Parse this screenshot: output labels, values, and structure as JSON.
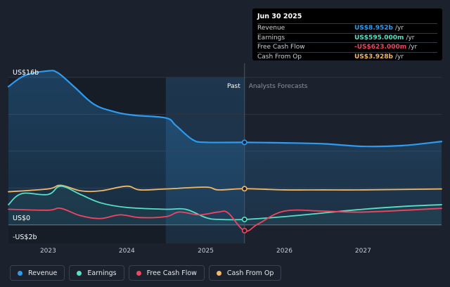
{
  "chart_data": {
    "type": "area",
    "y_axis": {
      "top_label": "US$16b",
      "zero_label": "US$0",
      "bottom_label": "-US$2b",
      "ylim": [
        -2000,
        16000
      ],
      "gridlines": [
        16000,
        12000,
        8000,
        4000,
        0
      ]
    },
    "x_axis": {
      "ticks": [
        "2023",
        "2024",
        "2025",
        "2026",
        "2027"
      ],
      "range": [
        "2022-07-01",
        "2027-12-31"
      ]
    },
    "sections": {
      "past_label": "Past",
      "forecast_label": "Analysts Forecasts",
      "divider_date": "2025-06-30",
      "highlight_start": "2024-06-30"
    },
    "tooltip": {
      "date": "Jun 30 2025",
      "rows": [
        {
          "label": "Revenue",
          "value": "US$8.952b",
          "unit": "/yr",
          "color": "#2e9bf0"
        },
        {
          "label": "Earnings",
          "value": "US$595.000m",
          "unit": "/yr",
          "color": "#58e0c6"
        },
        {
          "label": "Free Cash Flow",
          "value": "-US$623.000m",
          "unit": "/yr",
          "color": "#ef4560"
        },
        {
          "label": "Cash From Op",
          "value": "US$3.928b",
          "unit": "/yr",
          "color": "#f2b866"
        }
      ]
    },
    "series": [
      {
        "name": "Revenue",
        "color": "#2e9bf0",
        "points": [
          [
            "2022-07-01",
            15000
          ],
          [
            "2022-09-15",
            16200
          ],
          [
            "2022-12-31",
            16700
          ],
          [
            "2023-02-15",
            16500
          ],
          [
            "2023-05-01",
            15000
          ],
          [
            "2023-08-01",
            13100
          ],
          [
            "2023-11-01",
            12300
          ],
          [
            "2024-02-01",
            11900
          ],
          [
            "2024-06-30",
            11600
          ],
          [
            "2024-08-15",
            10800
          ],
          [
            "2024-11-01",
            9250
          ],
          [
            "2025-01-01",
            8960
          ],
          [
            "2025-06-30",
            8952
          ],
          [
            "2025-12-31",
            8900
          ],
          [
            "2026-06-30",
            8800
          ],
          [
            "2026-12-31",
            8520
          ],
          [
            "2027-06-30",
            8600
          ],
          [
            "2027-12-31",
            9050
          ]
        ]
      },
      {
        "name": "Earnings",
        "color": "#58e0c6",
        "points": [
          [
            "2022-07-01",
            2200
          ],
          [
            "2022-09-01",
            3400
          ],
          [
            "2022-12-31",
            3300
          ],
          [
            "2023-03-01",
            4200
          ],
          [
            "2023-06-01",
            3300
          ],
          [
            "2023-09-01",
            2400
          ],
          [
            "2023-12-31",
            1900
          ],
          [
            "2024-06-30",
            1700
          ],
          [
            "2024-09-30",
            1700
          ],
          [
            "2025-01-01",
            800
          ],
          [
            "2025-03-01",
            600
          ],
          [
            "2025-06-30",
            595
          ],
          [
            "2025-12-31",
            900
          ],
          [
            "2026-06-30",
            1300
          ],
          [
            "2026-12-31",
            1700
          ],
          [
            "2027-06-30",
            2000
          ],
          [
            "2027-12-31",
            2200
          ]
        ]
      },
      {
        "name": "Free Cash Flow",
        "color": "#ef4560",
        "points": [
          [
            "2022-07-01",
            1700
          ],
          [
            "2022-12-31",
            1600
          ],
          [
            "2023-03-01",
            1800
          ],
          [
            "2023-06-01",
            1000
          ],
          [
            "2023-09-01",
            700
          ],
          [
            "2023-12-01",
            1100
          ],
          [
            "2024-03-01",
            800
          ],
          [
            "2024-06-30",
            900
          ],
          [
            "2024-09-01",
            1400
          ],
          [
            "2024-12-01",
            1100
          ],
          [
            "2025-03-01",
            1400
          ],
          [
            "2025-04-15",
            1300
          ],
          [
            "2025-06-30",
            -623
          ],
          [
            "2025-09-01",
            100
          ],
          [
            "2026-01-01",
            1500
          ],
          [
            "2026-06-30",
            1500
          ],
          [
            "2027-01-01",
            1400
          ],
          [
            "2027-12-31",
            1800
          ]
        ]
      },
      {
        "name": "Cash From Op",
        "color": "#f2b866",
        "points": [
          [
            "2022-07-01",
            3600
          ],
          [
            "2022-12-31",
            3900
          ],
          [
            "2023-03-01",
            4300
          ],
          [
            "2023-06-01",
            3700
          ],
          [
            "2023-09-01",
            3700
          ],
          [
            "2023-12-31",
            4200
          ],
          [
            "2024-03-01",
            3800
          ],
          [
            "2024-07-01",
            3900
          ],
          [
            "2024-12-31",
            4100
          ],
          [
            "2025-03-01",
            3800
          ],
          [
            "2025-06-30",
            3928
          ],
          [
            "2025-12-31",
            3800
          ],
          [
            "2026-06-30",
            3800
          ],
          [
            "2026-12-31",
            3800
          ],
          [
            "2027-12-31",
            3900
          ]
        ]
      }
    ]
  },
  "legend": [
    {
      "label": "Revenue",
      "color": "#2e9bf0"
    },
    {
      "label": "Earnings",
      "color": "#58e0c6"
    },
    {
      "label": "Free Cash Flow",
      "color": "#ef4560"
    },
    {
      "label": "Cash From Op",
      "color": "#f2b866"
    }
  ]
}
